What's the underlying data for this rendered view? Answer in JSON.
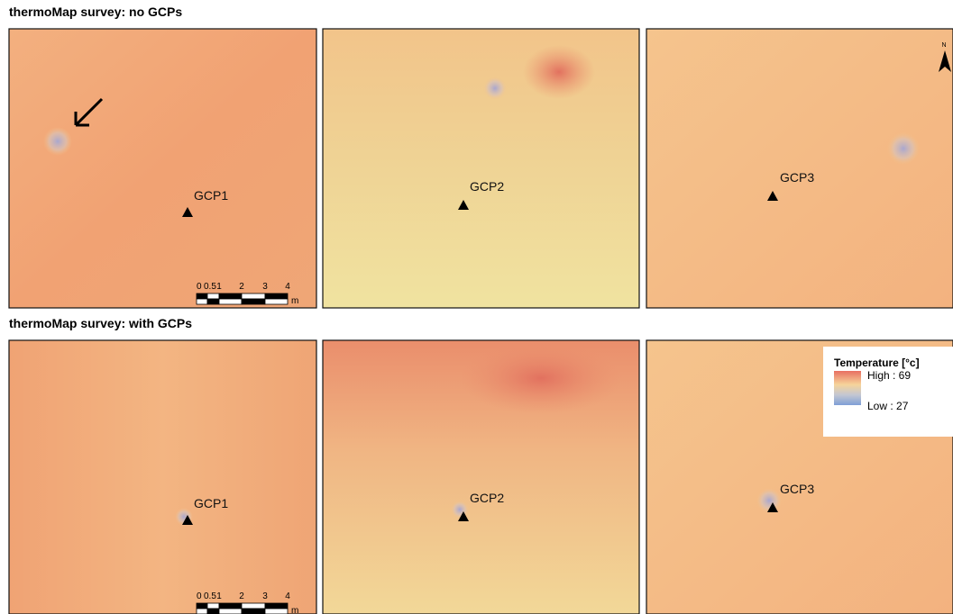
{
  "rows": [
    {
      "title": "thermoMap survey: no GCPs",
      "panels": [
        {
          "label": "GCP1"
        },
        {
          "label": "GCP2"
        },
        {
          "label": "GCP3"
        }
      ]
    },
    {
      "title": "thermoMap survey: with GCPs",
      "panels": [
        {
          "label": "GCP1"
        },
        {
          "label": "GCP2"
        },
        {
          "label": "GCP3"
        }
      ]
    }
  ],
  "scale_bar": {
    "ticks": [
      "0",
      "0.5",
      "1",
      "2",
      "3",
      "4"
    ],
    "unit": "m"
  },
  "legend": {
    "title": "Temperature [°c]",
    "high": "High : 69",
    "low": "Low : 27"
  },
  "north_label": "N"
}
